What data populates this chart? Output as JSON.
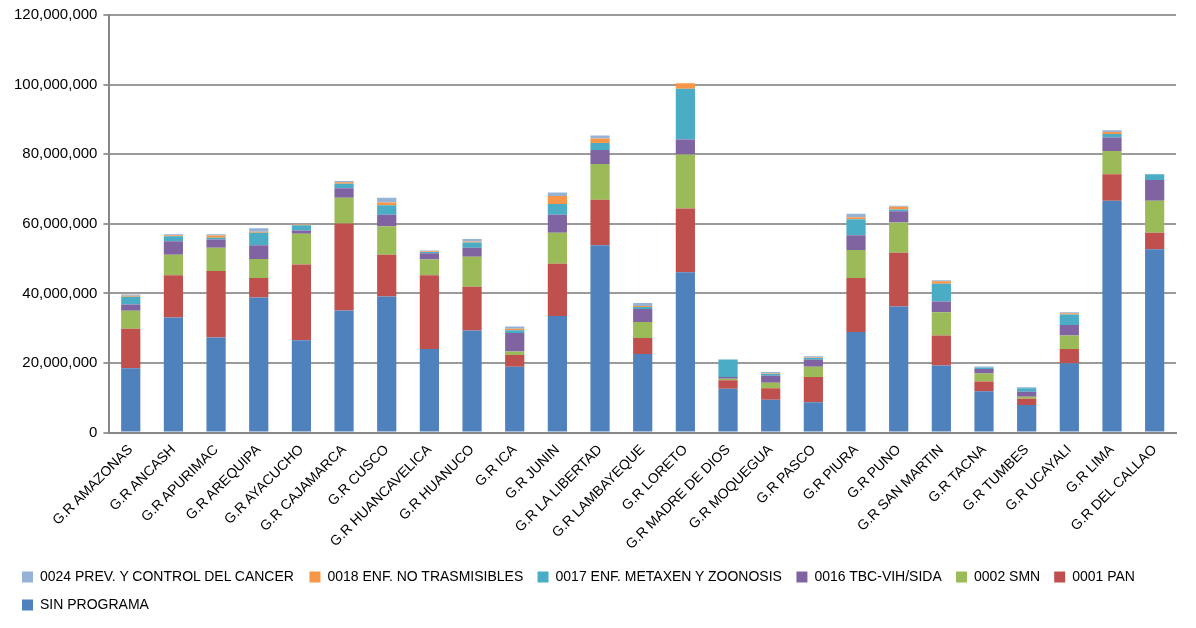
{
  "chart_data": {
    "type": "bar",
    "stacked": true,
    "grid": "y",
    "legend": "bottom",
    "categories": [
      "G.R AMAZONAS",
      "G.R ANCASH",
      "G.R APURIMAC",
      "G.R AREQUIPA",
      "G.R AYACUCHO",
      "G.R CAJAMARCA",
      "G.R CUSCO",
      "G.R HUANCAVELICA",
      "G.R HUANUCO",
      "G.R ICA",
      "G.R JUNIN",
      "G.R LA LIBERTAD",
      "G.R LAMBAYEQUE",
      "G.R LORETO",
      "G.R MADRE DE DIOS",
      "G.R MOQUEGUA",
      "G.R PASCO",
      "G.R PIURA",
      "G.R PUNO",
      "G.R SAN MARTIN",
      "G.R TACNA",
      "G.R TUMBES",
      "G.R UCAYALI",
      "G.R LIMA",
      "G.R DEL CALLAO"
    ],
    "ylim": [
      0,
      120000000
    ],
    "yticks": [
      {
        "value": 0,
        "label": "0"
      },
      {
        "value": 20000000,
        "label": "20,000,000"
      },
      {
        "value": 40000000,
        "label": "40,000,000"
      },
      {
        "value": 60000000,
        "label": "60,000,000"
      },
      {
        "value": 80000000,
        "label": "80,000,000"
      },
      {
        "value": 100000000,
        "label": "100,000,000"
      },
      {
        "value": 120000000,
        "label": "120,000,000"
      }
    ],
    "series": [
      {
        "name": "SIN PROGRAMA",
        "color": "#4f81bd",
        "values": [
          18500000,
          33100000,
          27300000,
          38800000,
          26500000,
          35100000,
          39100000,
          24000000,
          29300000,
          18900000,
          33500000,
          53800000,
          22600000,
          46100000,
          12600000,
          9400000,
          8700000,
          28900000,
          36200000,
          19300000,
          11900000,
          7900000,
          19900000,
          66600000,
          52700000
        ]
      },
      {
        "name": "0001 PAN",
        "color": "#c0504d",
        "values": [
          11300000,
          12100000,
          19100000,
          5600000,
          21800000,
          25000000,
          12000000,
          21200000,
          12600000,
          3400000,
          15000000,
          13100000,
          4600000,
          18300000,
          2400000,
          3300000,
          7300000,
          15500000,
          15500000,
          8600000,
          2800000,
          1800000,
          4100000,
          7600000,
          4700000
        ]
      },
      {
        "name": "0002 SMN",
        "color": "#9bbb59",
        "values": [
          5200000,
          5900000,
          6700000,
          5500000,
          8800000,
          7400000,
          8200000,
          4500000,
          8600000,
          1000000,
          8900000,
          10300000,
          4600000,
          15500000,
          500000,
          1600000,
          2900000,
          8100000,
          8700000,
          6700000,
          2300000,
          600000,
          3900000,
          6700000,
          9200000
        ]
      },
      {
        "name": "0016 TBC-VIH/SIDA",
        "color": "#8064a2",
        "values": [
          1800000,
          3900000,
          2400000,
          3900000,
          1000000,
          2700000,
          3300000,
          1800000,
          2600000,
          5300000,
          5200000,
          4000000,
          3700000,
          4300000,
          500000,
          2000000,
          2000000,
          4200000,
          3200000,
          3100000,
          1300000,
          1400000,
          3000000,
          3900000,
          6000000
        ]
      },
      {
        "name": "0017 ENF. METAXEN Y ZOONOSIS",
        "color": "#4bacc6",
        "values": [
          2200000,
          1400000,
          500000,
          3600000,
          1500000,
          1300000,
          2700000,
          400000,
          1500000,
          800000,
          3100000,
          2000000,
          600000,
          14600000,
          5000000,
          500000,
          500000,
          4600000,
          500000,
          5100000,
          400000,
          1000000,
          3000000,
          1000000,
          1600000
        ]
      },
      {
        "name": "0018 ENF. NO TRASMISIBLES",
        "color": "#f79646",
        "values": [
          300000,
          300000,
          600000,
          300000,
          200000,
          400000,
          800000,
          200000,
          300000,
          400000,
          2300000,
          1300000,
          300000,
          1600000,
          null,
          200000,
          200000,
          600000,
          800000,
          700000,
          null,
          null,
          400000,
          600000,
          0
        ]
      },
      {
        "name": "0024 PREV. Y CONTROL DEL CANCER",
        "color": "#95b3d7",
        "values": [
          400000,
          300000,
          400000,
          1000000,
          200000,
          400000,
          1400000,
          200000,
          700000,
          700000,
          1000000,
          900000,
          800000,
          0,
          0,
          400000,
          300000,
          1000000,
          300000,
          300000,
          300000,
          300000,
          300000,
          500000,
          0
        ]
      }
    ]
  }
}
